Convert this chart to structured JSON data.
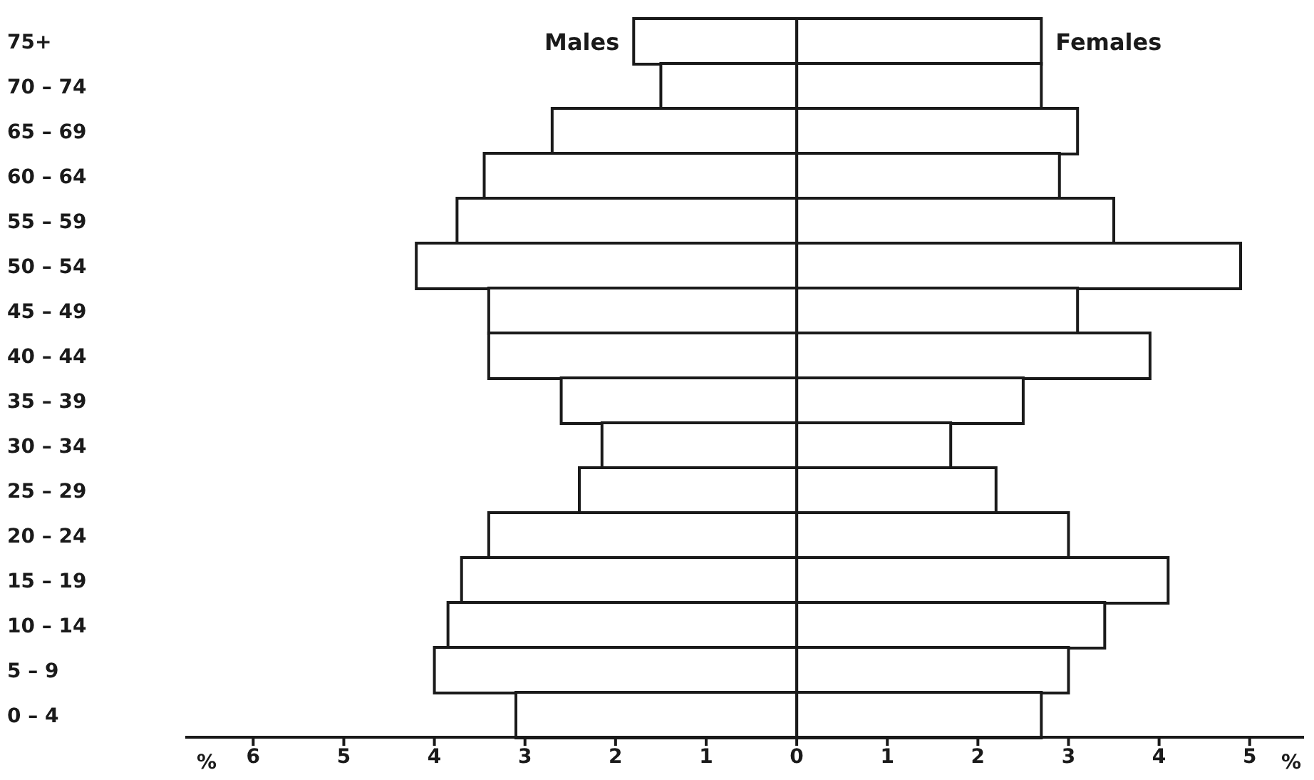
{
  "chart_data": {
    "type": "bar",
    "orientation": "horizontal",
    "stacked": true,
    "categories": [
      "75+",
      "70 – 74",
      "65 – 69",
      "60 – 64",
      "55 – 59",
      "50 – 54",
      "45 – 49",
      "40 – 44",
      "35 – 39",
      "30 – 34",
      "25 – 29",
      "20 – 24",
      "15 – 19",
      "10 – 14",
      "5 – 9",
      "0 – 4"
    ],
    "series": [
      {
        "name": "Males",
        "color": "#1a1a1a",
        "values": [
          -1.8,
          -1.5,
          -2.7,
          -3.45,
          -3.75,
          -4.2,
          -3.4,
          -3.4,
          -2.6,
          -2.15,
          -2.4,
          -3.4,
          -3.7,
          -3.85,
          -4.0,
          -3.1
        ]
      },
      {
        "name": "Females",
        "color": "#1a1a1a",
        "values": [
          2.7,
          2.7,
          3.1,
          2.9,
          3.5,
          4.9,
          3.1,
          3.9,
          2.5,
          1.7,
          2.2,
          3.0,
          4.1,
          3.4,
          3.0,
          2.7
        ]
      }
    ],
    "xlim": [
      -6.75,
      5.6
    ],
    "xticks": [
      {
        "value": -6,
        "label": "6"
      },
      {
        "value": -5,
        "label": "5"
      },
      {
        "value": -4,
        "label": "4"
      },
      {
        "value": -3,
        "label": "3"
      },
      {
        "value": -2,
        "label": "2"
      },
      {
        "value": -1,
        "label": "1"
      },
      0,
      1,
      2,
      3,
      4,
      5
    ],
    "ref_lines": [
      {
        "axis": "x",
        "value": 0,
        "color": "#1a1a1a"
      }
    ],
    "annotations": [
      "%",
      "%"
    ]
  }
}
